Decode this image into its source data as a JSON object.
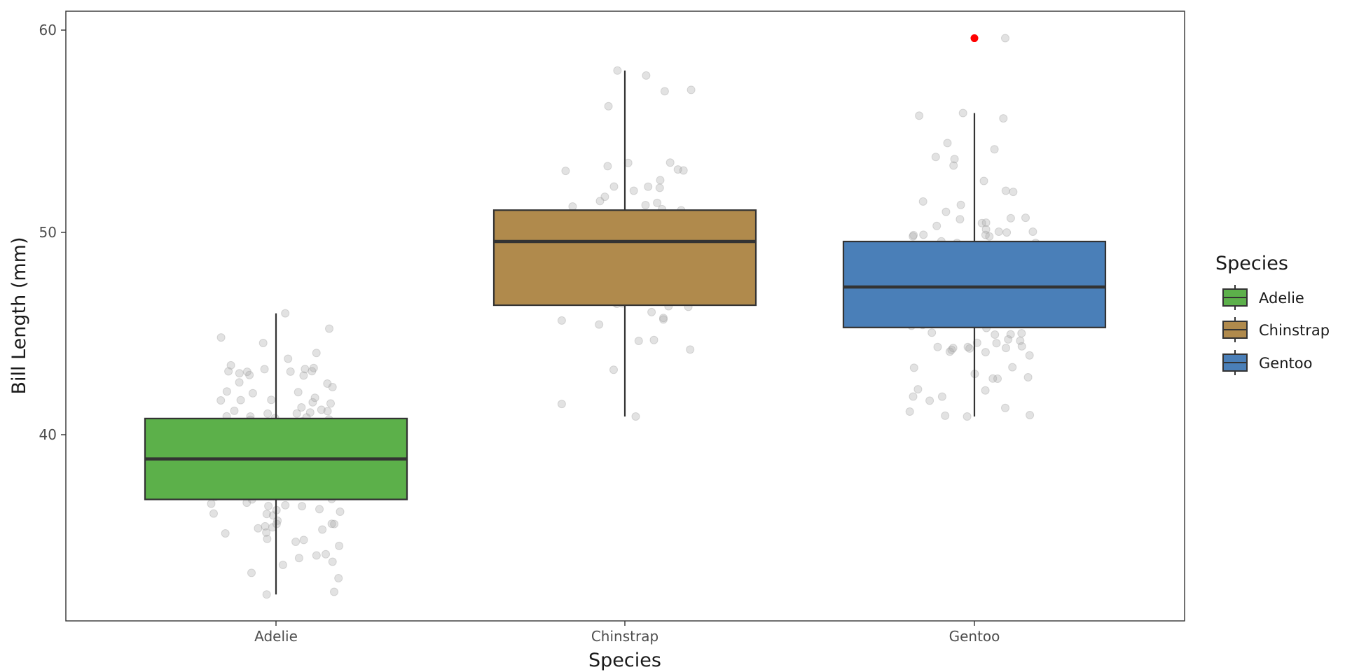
{
  "chart_data": {
    "type": "box",
    "xlabel": "Species",
    "ylabel": "Bill Length (mm)",
    "ylim": [
      31.3,
      61.5
    ],
    "yticks": [
      40,
      50,
      60
    ],
    "categories": [
      "Adelie",
      "Chinstrap",
      "Gentoo"
    ],
    "colors": {
      "Adelie": "#5cb04a",
      "Chinstrap": "#b08a4c",
      "Gentoo": "#4a7fb8",
      "outlier": "#ff0000",
      "points": "#b3b3b3"
    },
    "boxes": [
      {
        "category": "Adelie",
        "min": 32.1,
        "q1": 36.8,
        "median": 38.8,
        "q3": 40.8,
        "max": 46.0,
        "outliers": []
      },
      {
        "category": "Chinstrap",
        "min": 40.9,
        "q1": 46.4,
        "median": 49.55,
        "q3": 51.1,
        "max": 58.0,
        "outliers": []
      },
      {
        "category": "Gentoo",
        "min": 40.9,
        "q1": 45.3,
        "median": 47.3,
        "q3": 49.55,
        "max": 55.9,
        "outliers": [
          59.6
        ]
      }
    ],
    "legend": {
      "title": "Species",
      "position": "right",
      "items": [
        "Adelie",
        "Chinstrap",
        "Gentoo"
      ]
    },
    "grid": false,
    "jitter_points": true
  }
}
